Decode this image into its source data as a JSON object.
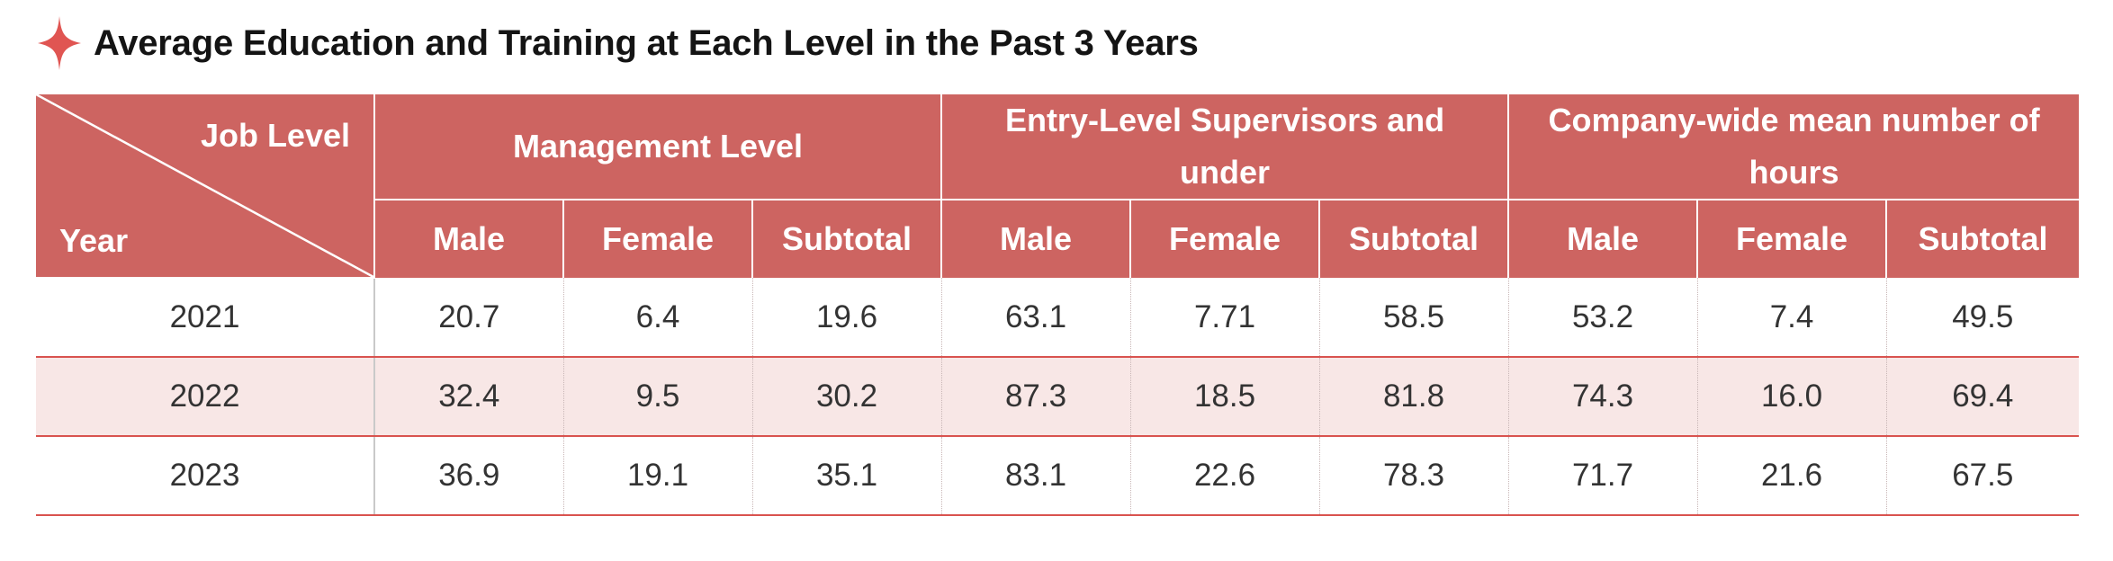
{
  "title": "Average Education and Training at Each Level in the Past 3 Years",
  "colors": {
    "accent": "#cd6461",
    "title_icon": "#e05552",
    "alt_row": "#f8e7e6",
    "row_rule": "#d9534f"
  },
  "icons": {
    "title_icon": "four-point-star-icon"
  },
  "table": {
    "corner_top": "Job Level",
    "corner_bottom": "Year",
    "groups": [
      "Management Level",
      "Entry-Level Supervisors and under",
      "Company-wide mean number of hours"
    ],
    "subheaders": [
      "Male",
      "Female",
      "Subtotal",
      "Male",
      "Female",
      "Subtotal",
      "Male",
      "Female",
      "Subtotal"
    ],
    "rows": [
      {
        "year": "2021",
        "values": [
          "20.7",
          "6.4",
          "19.6",
          "63.1",
          "7.71",
          "58.5",
          "53.2",
          "7.4",
          "49.5"
        ]
      },
      {
        "year": "2022",
        "values": [
          "32.4",
          "9.5",
          "30.2",
          "87.3",
          "18.5",
          "81.8",
          "74.3",
          "16.0",
          "69.4"
        ]
      },
      {
        "year": "2023",
        "values": [
          "36.9",
          "19.1",
          "35.1",
          "83.1",
          "22.6",
          "78.3",
          "71.7",
          "21.6",
          "67.5"
        ]
      }
    ]
  }
}
